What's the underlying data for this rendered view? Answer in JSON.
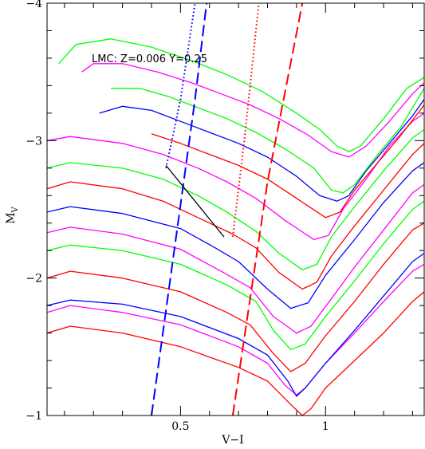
{
  "chart_data": {
    "type": "line",
    "title": "",
    "xlabel": "V−I",
    "ylabel": "M",
    "ylabel_sub": "V",
    "xlim": [
      0.04,
      1.34
    ],
    "ylim": [
      -1,
      -4
    ],
    "x_ticks": [
      {
        "value": 0.5,
        "label": "0.5"
      },
      {
        "value": 1,
        "label": "1"
      }
    ],
    "y_ticks": [
      {
        "value": -4,
        "label": "−4"
      },
      {
        "value": -3,
        "label": "−3"
      },
      {
        "value": -2,
        "label": "−2"
      },
      {
        "value": -1,
        "label": "−1"
      }
    ],
    "annotation": "LMC: Z=0.006 Y=0.25",
    "colors": {
      "red": "#ff0000",
      "green": "#00ff00",
      "magenta": "#ff00ff",
      "blue": "#0000ff",
      "black": "#000000"
    },
    "series": [
      {
        "color": "red",
        "style": "solid",
        "points": [
          [
            0.04,
            -1.6
          ],
          [
            0.12,
            -1.65
          ],
          [
            0.3,
            -1.6
          ],
          [
            0.5,
            -1.5
          ],
          [
            0.7,
            -1.35
          ],
          [
            0.8,
            -1.25
          ],
          [
            0.88,
            -1.08
          ],
          [
            0.92,
            -1.0
          ],
          [
            0.95,
            -1.05
          ],
          [
            1.0,
            -1.2
          ],
          [
            1.1,
            -1.4
          ],
          [
            1.2,
            -1.6
          ],
          [
            1.3,
            -1.83
          ],
          [
            1.34,
            -1.9
          ]
        ]
      },
      {
        "color": "magenta",
        "style": "solid",
        "points": [
          [
            0.04,
            -1.75
          ],
          [
            0.12,
            -1.8
          ],
          [
            0.3,
            -1.75
          ],
          [
            0.5,
            -1.66
          ],
          [
            0.7,
            -1.5
          ],
          [
            0.8,
            -1.38
          ],
          [
            0.86,
            -1.22
          ],
          [
            0.9,
            -1.15
          ],
          [
            0.93,
            -1.2
          ],
          [
            1.0,
            -1.38
          ],
          [
            1.1,
            -1.6
          ],
          [
            1.2,
            -1.83
          ],
          [
            1.3,
            -2.05
          ],
          [
            1.34,
            -2.1
          ]
        ]
      },
      {
        "color": "blue",
        "style": "solid",
        "points": [
          [
            0.04,
            -1.8
          ],
          [
            0.12,
            -1.84
          ],
          [
            0.3,
            -1.81
          ],
          [
            0.5,
            -1.72
          ],
          [
            0.7,
            -1.56
          ],
          [
            0.8,
            -1.44
          ],
          [
            0.87,
            -1.25
          ],
          [
            0.9,
            -1.14
          ],
          [
            0.93,
            -1.2
          ],
          [
            1.0,
            -1.38
          ],
          [
            1.1,
            -1.62
          ],
          [
            1.2,
            -1.87
          ],
          [
            1.3,
            -2.12
          ],
          [
            1.34,
            -2.18
          ]
        ]
      },
      {
        "color": "red",
        "style": "solid",
        "points": [
          [
            0.04,
            -2.0
          ],
          [
            0.12,
            -2.05
          ],
          [
            0.3,
            -2.0
          ],
          [
            0.5,
            -1.9
          ],
          [
            0.66,
            -1.75
          ],
          [
            0.74,
            -1.66
          ],
          [
            0.82,
            -1.45
          ],
          [
            0.88,
            -1.32
          ],
          [
            0.93,
            -1.38
          ],
          [
            1.0,
            -1.58
          ],
          [
            1.1,
            -1.83
          ],
          [
            1.2,
            -2.1
          ],
          [
            1.3,
            -2.35
          ],
          [
            1.34,
            -2.4
          ]
        ]
      },
      {
        "color": "green",
        "style": "solid",
        "points": [
          [
            0.04,
            -2.2
          ],
          [
            0.12,
            -2.24
          ],
          [
            0.3,
            -2.2
          ],
          [
            0.5,
            -2.1
          ],
          [
            0.66,
            -1.95
          ],
          [
            0.76,
            -1.83
          ],
          [
            0.82,
            -1.62
          ],
          [
            0.88,
            -1.48
          ],
          [
            0.93,
            -1.52
          ],
          [
            1.0,
            -1.72
          ],
          [
            1.1,
            -1.98
          ],
          [
            1.2,
            -2.25
          ],
          [
            1.3,
            -2.5
          ],
          [
            1.34,
            -2.56
          ]
        ]
      },
      {
        "color": "magenta",
        "style": "solid",
        "points": [
          [
            0.04,
            -2.33
          ],
          [
            0.12,
            -2.37
          ],
          [
            0.3,
            -2.32
          ],
          [
            0.5,
            -2.21
          ],
          [
            0.64,
            -2.05
          ],
          [
            0.74,
            -1.93
          ],
          [
            0.82,
            -1.72
          ],
          [
            0.9,
            -1.6
          ],
          [
            0.95,
            -1.65
          ],
          [
            1.02,
            -1.85
          ],
          [
            1.1,
            -2.08
          ],
          [
            1.2,
            -2.35
          ],
          [
            1.3,
            -2.62
          ],
          [
            1.34,
            -2.68
          ]
        ]
      },
      {
        "color": "blue",
        "style": "solid",
        "points": [
          [
            0.04,
            -2.48
          ],
          [
            0.12,
            -2.52
          ],
          [
            0.3,
            -2.47
          ],
          [
            0.5,
            -2.36
          ],
          [
            0.62,
            -2.22
          ],
          [
            0.7,
            -2.12
          ],
          [
            0.8,
            -1.92
          ],
          [
            0.88,
            -1.78
          ],
          [
            0.94,
            -1.82
          ],
          [
            1.0,
            -2.02
          ],
          [
            1.1,
            -2.28
          ],
          [
            1.2,
            -2.55
          ],
          [
            1.3,
            -2.78
          ],
          [
            1.34,
            -2.84
          ]
        ]
      },
      {
        "color": "red",
        "style": "solid",
        "points": [
          [
            0.04,
            -2.65
          ],
          [
            0.12,
            -2.7
          ],
          [
            0.3,
            -2.65
          ],
          [
            0.44,
            -2.56
          ],
          [
            0.56,
            -2.44
          ],
          [
            0.68,
            -2.32
          ],
          [
            0.76,
            -2.22
          ],
          [
            0.84,
            -2.04
          ],
          [
            0.92,
            -1.92
          ],
          [
            0.97,
            -1.97
          ],
          [
            1.02,
            -2.16
          ],
          [
            1.1,
            -2.38
          ],
          [
            1.2,
            -2.64
          ],
          [
            1.3,
            -2.9
          ],
          [
            1.34,
            -2.98
          ]
        ]
      },
      {
        "color": "green",
        "style": "solid",
        "points": [
          [
            0.04,
            -2.8
          ],
          [
            0.12,
            -2.84
          ],
          [
            0.3,
            -2.8
          ],
          [
            0.44,
            -2.72
          ],
          [
            0.56,
            -2.6
          ],
          [
            0.66,
            -2.48
          ],
          [
            0.76,
            -2.34
          ],
          [
            0.84,
            -2.18
          ],
          [
            0.92,
            -2.06
          ],
          [
            0.97,
            -2.1
          ],
          [
            1.02,
            -2.3
          ],
          [
            1.1,
            -2.52
          ],
          [
            1.2,
            -2.78
          ],
          [
            1.3,
            -3.02
          ],
          [
            1.34,
            -3.08
          ]
        ]
      },
      {
        "color": "magenta",
        "style": "solid",
        "points": [
          [
            0.04,
            -3.0
          ],
          [
            0.12,
            -3.03
          ],
          [
            0.3,
            -2.98
          ],
          [
            0.44,
            -2.9
          ],
          [
            0.56,
            -2.8
          ],
          [
            0.66,
            -2.7
          ],
          [
            0.76,
            -2.58
          ],
          [
            0.86,
            -2.42
          ],
          [
            0.96,
            -2.28
          ],
          [
            1.01,
            -2.31
          ],
          [
            1.06,
            -2.5
          ],
          [
            1.14,
            -2.72
          ],
          [
            1.22,
            -2.96
          ],
          [
            1.3,
            -3.14
          ],
          [
            1.34,
            -3.2
          ]
        ]
      },
      {
        "color": "red",
        "style": "solid",
        "points": [
          [
            0.4,
            -3.05
          ],
          [
            0.5,
            -2.98
          ],
          [
            0.6,
            -2.9
          ],
          [
            0.7,
            -2.82
          ],
          [
            0.8,
            -2.72
          ],
          [
            0.9,
            -2.58
          ],
          [
            1.0,
            -2.44
          ],
          [
            1.05,
            -2.48
          ],
          [
            1.1,
            -2.64
          ],
          [
            1.18,
            -2.84
          ],
          [
            1.26,
            -3.04
          ],
          [
            1.34,
            -3.26
          ]
        ]
      },
      {
        "color": "blue",
        "style": "solid",
        "points": [
          [
            0.22,
            -3.2
          ],
          [
            0.3,
            -3.25
          ],
          [
            0.4,
            -3.22
          ],
          [
            0.5,
            -3.14
          ],
          [
            0.6,
            -3.06
          ],
          [
            0.7,
            -2.98
          ],
          [
            0.8,
            -2.88
          ],
          [
            0.9,
            -2.74
          ],
          [
            0.98,
            -2.6
          ],
          [
            1.04,
            -2.56
          ],
          [
            1.08,
            -2.6
          ],
          [
            1.14,
            -2.78
          ],
          [
            1.22,
            -2.98
          ],
          [
            1.3,
            -3.18
          ],
          [
            1.34,
            -3.3
          ]
        ]
      },
      {
        "color": "green",
        "style": "solid",
        "points": [
          [
            0.26,
            -3.38
          ],
          [
            0.36,
            -3.38
          ],
          [
            0.46,
            -3.32
          ],
          [
            0.56,
            -3.24
          ],
          [
            0.66,
            -3.16
          ],
          [
            0.76,
            -3.06
          ],
          [
            0.86,
            -2.94
          ],
          [
            0.96,
            -2.8
          ],
          [
            1.02,
            -2.64
          ],
          [
            1.06,
            -2.62
          ],
          [
            1.1,
            -2.68
          ],
          [
            1.18,
            -2.9
          ],
          [
            1.26,
            -3.1
          ],
          [
            1.34,
            -3.38
          ]
        ]
      },
      {
        "color": "magenta",
        "style": "solid",
        "points": [
          [
            0.16,
            -3.5
          ],
          [
            0.2,
            -3.56
          ],
          [
            0.3,
            -3.56
          ],
          [
            0.42,
            -3.5
          ],
          [
            0.54,
            -3.42
          ],
          [
            0.64,
            -3.34
          ],
          [
            0.74,
            -3.26
          ],
          [
            0.84,
            -3.16
          ],
          [
            0.94,
            -3.04
          ],
          [
            1.02,
            -2.92
          ],
          [
            1.08,
            -2.88
          ],
          [
            1.14,
            -2.96
          ],
          [
            1.22,
            -3.14
          ],
          [
            1.3,
            -3.34
          ],
          [
            1.34,
            -3.42
          ]
        ]
      },
      {
        "color": "green",
        "style": "solid",
        "points": [
          [
            0.08,
            -3.56
          ],
          [
            0.14,
            -3.7
          ],
          [
            0.26,
            -3.74
          ],
          [
            0.4,
            -3.68
          ],
          [
            0.54,
            -3.58
          ],
          [
            0.66,
            -3.48
          ],
          [
            0.78,
            -3.36
          ],
          [
            0.9,
            -3.2
          ],
          [
            0.98,
            -3.08
          ],
          [
            1.04,
            -2.96
          ],
          [
            1.08,
            -2.92
          ],
          [
            1.12,
            -2.96
          ],
          [
            1.2,
            -3.16
          ],
          [
            1.28,
            -3.38
          ],
          [
            1.34,
            -3.46
          ]
        ]
      },
      {
        "color": "blue",
        "style": "dotted",
        "points": [
          [
            0.45,
            -2.8
          ],
          [
            0.5,
            -3.3
          ],
          [
            0.55,
            -4.0
          ]
        ]
      },
      {
        "color": "blue",
        "style": "dashed",
        "points": [
          [
            0.4,
            -1.0
          ],
          [
            0.55,
            -3.3
          ],
          [
            0.59,
            -4.0
          ]
        ]
      },
      {
        "color": "red",
        "style": "dotted",
        "points": [
          [
            0.68,
            -2.3
          ],
          [
            0.72,
            -3.0
          ],
          [
            0.77,
            -4.0
          ]
        ]
      },
      {
        "color": "red",
        "style": "dashed",
        "points": [
          [
            0.68,
            -1.0
          ],
          [
            0.8,
            -2.7
          ],
          [
            0.92,
            -4.0
          ]
        ]
      },
      {
        "color": "black",
        "style": "solid",
        "points": [
          [
            0.45,
            -2.82
          ],
          [
            0.65,
            -2.3
          ]
        ]
      }
    ]
  }
}
